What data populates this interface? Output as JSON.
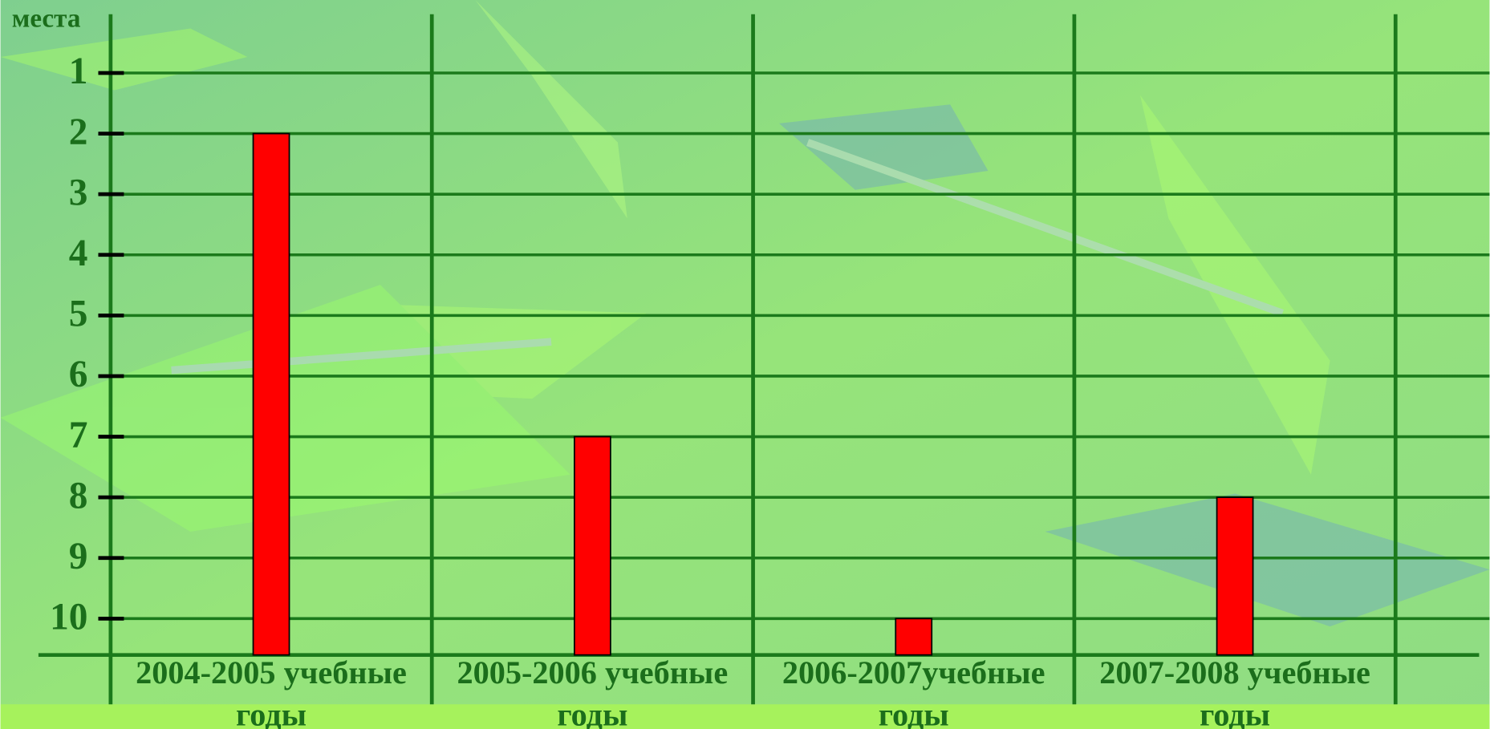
{
  "chart_data": {
    "type": "bar",
    "y_label": "места",
    "categories": [
      "2004-2005 учебные годы",
      "2005-2006 учебные годы",
      "2006-2007учебные годы",
      "2007-2008 учебные годы"
    ],
    "values": [
      2,
      7,
      10,
      8
    ],
    "color": "#ff0000",
    "ylim": [
      10.6,
      0
    ],
    "yticks": [
      1,
      2,
      3,
      4,
      5,
      6,
      7,
      8,
      9,
      10
    ],
    "grid": true
  }
}
